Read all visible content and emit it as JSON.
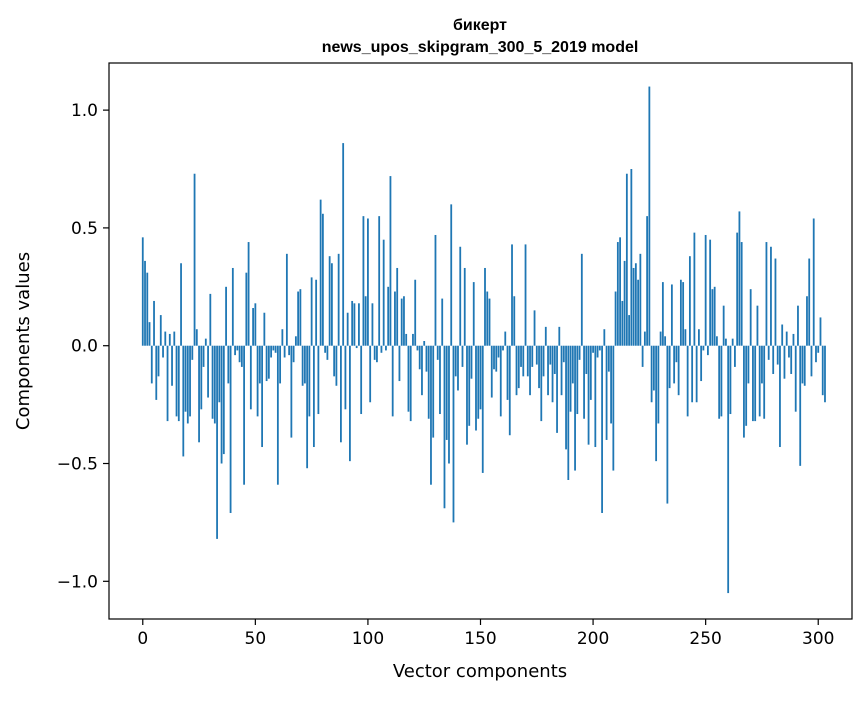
{
  "chart_data": {
    "type": "bar",
    "title_line1": "бикерт",
    "title_line2": "news_upos_skipgram_300_5_2019 model",
    "xlabel": "Vector components",
    "ylabel": "Components values",
    "xlim": [
      -15,
      315
    ],
    "ylim": [
      -1.16,
      1.2
    ],
    "x_ticks": [
      0,
      50,
      100,
      150,
      200,
      250,
      300
    ],
    "x_tick_labels": [
      "0",
      "50",
      "100",
      "150",
      "200",
      "250",
      "300"
    ],
    "y_ticks": [
      -1.0,
      -0.5,
      0.0,
      0.5,
      1.0
    ],
    "y_tick_labels": [
      "−1.0",
      "−0.5",
      "0.0",
      "0.5",
      "1.0"
    ],
    "bar_color": "#1f77b4",
    "values": [
      0.46,
      0.36,
      0.31,
      0.1,
      -0.16,
      0.19,
      -0.23,
      -0.13,
      0.13,
      -0.05,
      0.06,
      -0.32,
      0.05,
      -0.17,
      0.06,
      -0.3,
      -0.32,
      0.35,
      -0.47,
      -0.28,
      -0.33,
      -0.3,
      -0.06,
      0.73,
      0.07,
      -0.41,
      -0.27,
      -0.09,
      0.03,
      -0.22,
      0.22,
      -0.31,
      -0.33,
      -0.82,
      -0.24,
      -0.5,
      -0.46,
      0.25,
      -0.16,
      -0.71,
      0.33,
      -0.04,
      -0.02,
      -0.07,
      -0.09,
      -0.59,
      0.31,
      0.44,
      -0.27,
      0.16,
      0.18,
      -0.3,
      -0.16,
      -0.43,
      0.14,
      -0.15,
      -0.14,
      -0.05,
      -0.02,
      -0.03,
      -0.59,
      -0.16,
      0.07,
      -0.05,
      0.39,
      -0.04,
      -0.39,
      -0.07,
      0.04,
      0.23,
      0.24,
      -0.17,
      -0.16,
      -0.52,
      -0.3,
      0.29,
      -0.43,
      0.28,
      -0.29,
      0.62,
      0.56,
      -0.03,
      -0.06,
      0.38,
      0.35,
      -0.13,
      -0.17,
      0.39,
      -0.41,
      0.86,
      -0.27,
      0.14,
      -0.49,
      0.19,
      0.18,
      -0.01,
      0.18,
      -0.29,
      0.55,
      0.21,
      0.54,
      -0.24,
      0.18,
      -0.06,
      -0.07,
      0.55,
      -0.03,
      0.45,
      -0.02,
      0.25,
      0.72,
      -0.3,
      0.23,
      0.33,
      -0.15,
      0.2,
      0.21,
      0.05,
      -0.28,
      -0.32,
      0.05,
      0.28,
      -0.02,
      -0.1,
      -0.21,
      0.02,
      -0.11,
      -0.31,
      -0.59,
      -0.39,
      0.47,
      -0.06,
      -0.29,
      0.2,
      -0.69,
      -0.4,
      -0.5,
      0.6,
      -0.75,
      -0.13,
      -0.19,
      0.42,
      -0.09,
      0.33,
      -0.42,
      -0.34,
      -0.14,
      0.27,
      -0.36,
      -0.31,
      -0.27,
      -0.54,
      0.33,
      0.23,
      0.2,
      -0.22,
      -0.1,
      -0.11,
      -0.05,
      -0.3,
      -0.02,
      0.06,
      -0.23,
      -0.38,
      0.43,
      0.21,
      -0.21,
      -0.18,
      -0.09,
      -0.13,
      0.43,
      -0.13,
      -0.21,
      -0.09,
      0.15,
      -0.08,
      -0.18,
      -0.32,
      -0.13,
      0.08,
      -0.21,
      -0.08,
      -0.24,
      -0.12,
      -0.37,
      0.08,
      -0.21,
      -0.07,
      -0.44,
      -0.57,
      -0.28,
      -0.16,
      -0.53,
      -0.29,
      -0.06,
      0.39,
      -0.31,
      -0.12,
      -0.42,
      -0.23,
      -0.03,
      -0.43,
      -0.05,
      -0.02,
      -0.71,
      0.07,
      -0.4,
      -0.11,
      -0.33,
      -0.53,
      0.23,
      0.44,
      0.46,
      0.19,
      0.36,
      0.73,
      0.13,
      0.75,
      0.33,
      0.35,
      0.28,
      0.39,
      -0.09,
      0.06,
      0.55,
      1.1,
      -0.24,
      -0.19,
      -0.49,
      -0.33,
      0.06,
      0.27,
      0.04,
      -0.67,
      -0.18,
      0.26,
      -0.16,
      -0.07,
      -0.21,
      0.28,
      0.27,
      0.07,
      -0.3,
      0.38,
      -0.24,
      0.48,
      -0.24,
      0.07,
      -0.15,
      -0.02,
      0.47,
      -0.04,
      0.45,
      0.24,
      0.25,
      0.04,
      -0.31,
      -0.3,
      0.17,
      0.03,
      -1.05,
      -0.29,
      0.03,
      -0.09,
      0.48,
      0.57,
      0.44,
      -0.39,
      -0.34,
      -0.16,
      0.24,
      -0.32,
      -0.32,
      0.17,
      -0.3,
      -0.16,
      -0.31,
      0.44,
      -0.06,
      0.42,
      -0.12,
      0.37,
      -0.08,
      -0.43,
      0.09,
      -0.14,
      0.06,
      -0.05,
      -0.12,
      0.05,
      -0.28,
      0.17,
      -0.51,
      -0.16,
      -0.17,
      0.21,
      0.37,
      -0.13,
      0.54,
      -0.07,
      -0.03,
      0.12,
      -0.21,
      -0.24
    ],
    "grid": false,
    "legend": "none"
  }
}
